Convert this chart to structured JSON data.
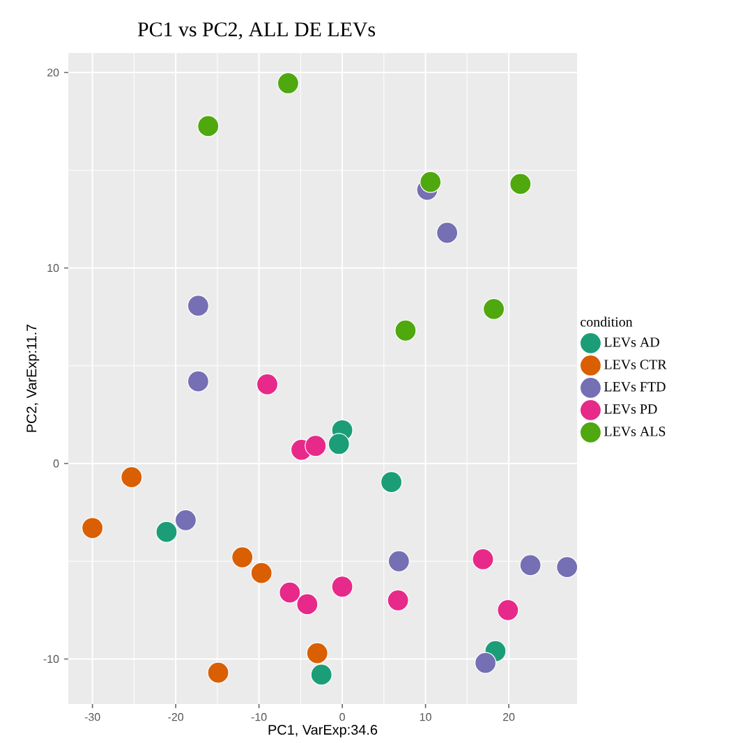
{
  "chart_data": {
    "type": "scatter",
    "title": "PC1 vs PC2, ALL DE LEVs",
    "xlabel": "PC1, VarExp:34.6",
    "ylabel": "PC2, VarExp:11.7",
    "legend_title": "condition",
    "legend": "right",
    "grid": true,
    "marker": "circle",
    "xlim": [
      -32.9,
      28.2
    ],
    "ylim": [
      -12.3,
      21.0
    ],
    "xticks": [
      -30,
      -20,
      -10,
      0,
      10,
      20
    ],
    "yticks": [
      -10,
      0,
      10,
      20
    ],
    "series": [
      {
        "name": "LEVs AD",
        "color": "#1b9e77",
        "x": [
          0,
          -0.4,
          5.9,
          -21.1,
          18.4,
          -2.5
        ],
        "values": [
          1.7,
          1.0,
          -0.95,
          -3.5,
          -9.6,
          -10.8
        ]
      },
      {
        "name": "LEVs CTR",
        "color": "#d95f02",
        "x": [
          -25.3,
          -30,
          -12.0,
          -9.7,
          -3.0,
          -14.9
        ],
        "values": [
          -0.7,
          -3.3,
          -4.8,
          -5.6,
          -9.7,
          -10.7
        ]
      },
      {
        "name": "LEVs FTD",
        "color": "#7570b3",
        "x": [
          10.2,
          12.6,
          -17.3,
          -17.3,
          -18.8,
          6.8,
          22.6,
          27.0,
          17.2
        ],
        "values": [
          14.0,
          11.8,
          8.07,
          4.2,
          -2.9,
          -5.0,
          -5.2,
          -5.3,
          -10.2
        ]
      },
      {
        "name": "LEVs PD",
        "color": "#e7298a",
        "x": [
          -9.0,
          -4.9,
          -3.2,
          -6.3,
          -4.2,
          0,
          6.7,
          16.9,
          19.9
        ],
        "values": [
          4.05,
          0.7,
          0.9,
          -6.6,
          -7.2,
          -6.3,
          -7.0,
          -4.9,
          -7.5
        ]
      },
      {
        "name": "LEVs ALS",
        "color": "#4fa80e",
        "x": [
          -16.1,
          -6.5,
          10.6,
          21.4,
          18.2,
          7.6
        ],
        "values": [
          17.26,
          19.45,
          14.4,
          14.3,
          7.9,
          6.8
        ]
      }
    ]
  }
}
